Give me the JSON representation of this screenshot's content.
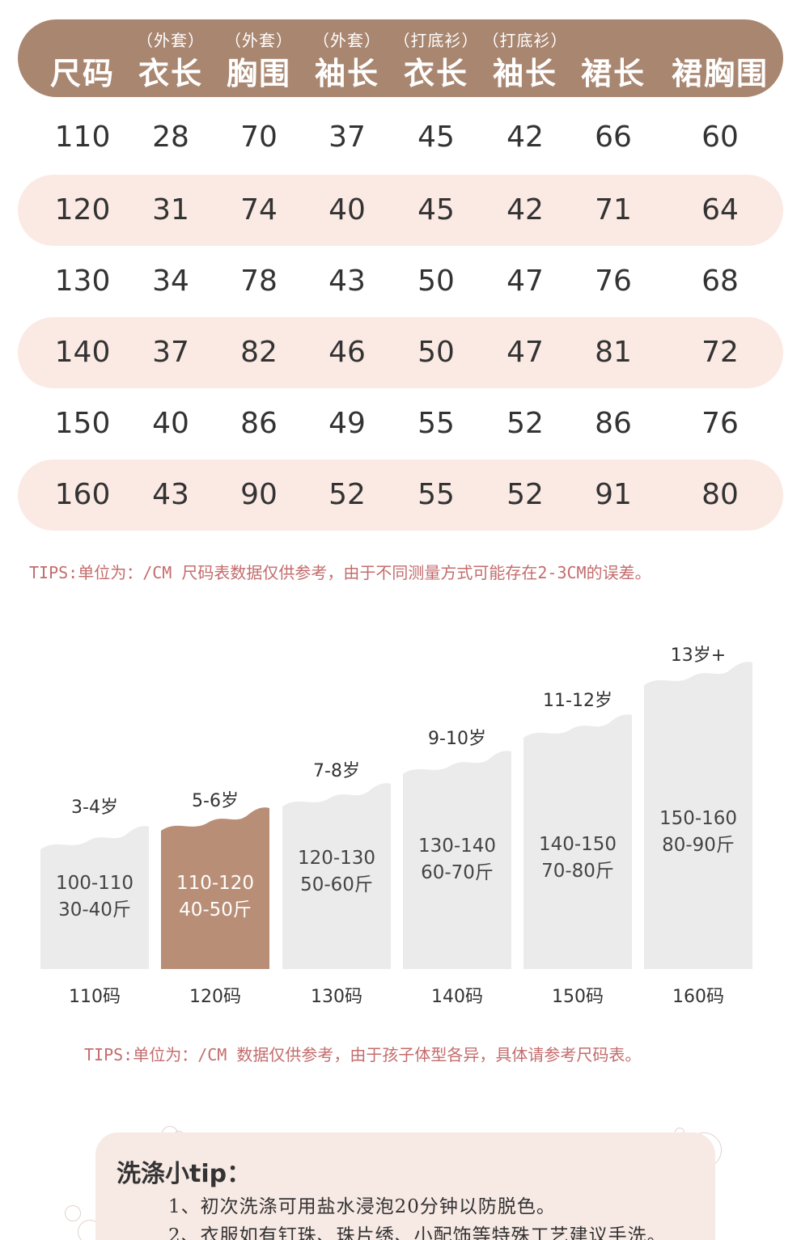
{
  "table": {
    "headers": [
      {
        "sub": "",
        "main": "尺码"
      },
      {
        "sub": "（外套）",
        "main": "衣长"
      },
      {
        "sub": "（外套）",
        "main": "胸围"
      },
      {
        "sub": "（外套）",
        "main": "袖长"
      },
      {
        "sub": "（打底衫）",
        "main": "衣长"
      },
      {
        "sub": "（打底衫）",
        "main": "袖长"
      },
      {
        "sub": "",
        "main": "裙长"
      },
      {
        "sub": "",
        "main": "裙胸围"
      }
    ],
    "rows": [
      [
        "110",
        "28",
        "70",
        "37",
        "45",
        "42",
        "66",
        "60"
      ],
      [
        "120",
        "31",
        "74",
        "40",
        "45",
        "42",
        "71",
        "64"
      ],
      [
        "130",
        "34",
        "78",
        "43",
        "50",
        "47",
        "76",
        "68"
      ],
      [
        "140",
        "37",
        "82",
        "46",
        "50",
        "47",
        "81",
        "72"
      ],
      [
        "150",
        "40",
        "86",
        "49",
        "55",
        "52",
        "86",
        "76"
      ],
      [
        "160",
        "43",
        "90",
        "52",
        "55",
        "52",
        "91",
        "80"
      ]
    ]
  },
  "tips1": "TIPS:单位为：/CM 尺码表数据仅供参考，由于不同测量方式可能存在2-3CM的误差。",
  "age_chart": {
    "bars": [
      {
        "age": "3-4岁",
        "height": "100-110",
        "weight": "30-40斤",
        "size": "110码"
      },
      {
        "age": "5-6岁",
        "height": "110-120",
        "weight": "40-50斤",
        "size": "120码"
      },
      {
        "age": "7-8岁",
        "height": "120-130",
        "weight": "50-60斤",
        "size": "130码"
      },
      {
        "age": "9-10岁",
        "height": "130-140",
        "weight": "60-70斤",
        "size": "140码"
      },
      {
        "age": "11-12岁",
        "height": "140-150",
        "weight": "70-80斤",
        "size": "150码"
      },
      {
        "age": "13岁+",
        "height": "150-160",
        "weight": "80-90斤",
        "size": "160码"
      }
    ],
    "highlighted": 1,
    "colors": {
      "bar": "#ebebeb",
      "highlight": "#b98e76"
    }
  },
  "tips2": "TIPS:单位为：/CM 数据仅供参考，由于孩子体型各异，具体请参考尺码表。",
  "wash": {
    "title": "洗涤小tip：",
    "lines": [
      "1、初次洗涤可用盐水浸泡20分钟以防脱色。",
      "2、衣服如有钉珠、珠片绣、小配饰等特殊工艺建议手洗。"
    ]
  }
}
